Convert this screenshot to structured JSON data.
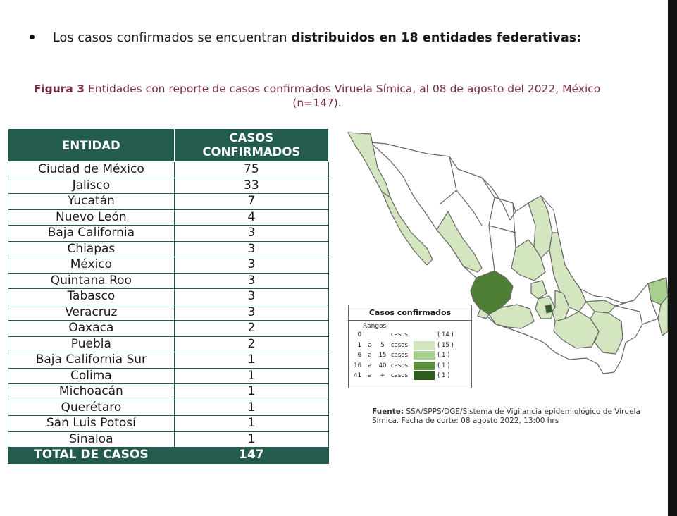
{
  "bullet": {
    "text_normal": "Los casos confirmados se encuentran ",
    "text_bold": "distribuidos en 18 entidades federativas:"
  },
  "caption": {
    "label": "Figura 3",
    "text": " Entidades con reporte de casos confirmados Viruela Símica, al 08 de agosto del 2022, México (n=147)."
  },
  "table": {
    "header_entity": "ENTIDAD",
    "header_cases_1": "CASOS",
    "header_cases_2": "CONFIRMADOS",
    "rows": [
      {
        "entidad": "Ciudad de México",
        "casos": "75"
      },
      {
        "entidad": "Jalisco",
        "casos": "33"
      },
      {
        "entidad": "Yucatán",
        "casos": "7"
      },
      {
        "entidad": "Nuevo León",
        "casos": "4"
      },
      {
        "entidad": "Baja California",
        "casos": "3"
      },
      {
        "entidad": "Chiapas",
        "casos": "3"
      },
      {
        "entidad": "México",
        "casos": "3"
      },
      {
        "entidad": "Quintana Roo",
        "casos": "3"
      },
      {
        "entidad": "Tabasco",
        "casos": "3"
      },
      {
        "entidad": "Veracruz",
        "casos": "3"
      },
      {
        "entidad": "Oaxaca",
        "casos": "2"
      },
      {
        "entidad": "Puebla",
        "casos": "2"
      },
      {
        "entidad": "Baja California Sur",
        "casos": "1"
      },
      {
        "entidad": "Colima",
        "casos": "1"
      },
      {
        "entidad": "Michoacán",
        "casos": "1"
      },
      {
        "entidad": "Querétaro",
        "casos": "1"
      },
      {
        "entidad": "San Luis Potosí",
        "casos": "1"
      },
      {
        "entidad": "Sinaloa",
        "casos": "1"
      }
    ],
    "total_label": "TOTAL DE CASOS",
    "total_value": "147"
  },
  "legend": {
    "title": "Casos confirmados",
    "subtitle": "Rangos",
    "rows": [
      {
        "from": "0",
        "a": "",
        "to": "",
        "unit": "casos",
        "count": "( 14 )",
        "color": "#ffffff"
      },
      {
        "from": "1",
        "a": "a",
        "to": "5",
        "unit": "casos",
        "count": "( 15 )",
        "color": "#d4e6bf"
      },
      {
        "from": "6",
        "a": "a",
        "to": "15",
        "unit": "casos",
        "count": "( 1 )",
        "color": "#a8d08d"
      },
      {
        "from": "16",
        "a": "a",
        "to": "40",
        "unit": "casos",
        "count": "( 1 )",
        "color": "#5a8f3c"
      },
      {
        "from": "41",
        "a": "a",
        "to": "+",
        "unit": "casos",
        "count": "( 1 )",
        "color": "#2e5e1e"
      }
    ]
  },
  "source": {
    "label": "Fuente:",
    "text": " SSA/SPPS/DGE/Sistema de Vigilancia epidemiológico de Viruela Símica. Fecha de corte: 08 agosto 2022, 13:00 hrs"
  },
  "colors": {
    "table_green": "#235b4e",
    "caption": "#7a2d4a",
    "light": "#d4e6bf",
    "mid": "#a8d08d",
    "dark": "#5a8f3c"
  }
}
